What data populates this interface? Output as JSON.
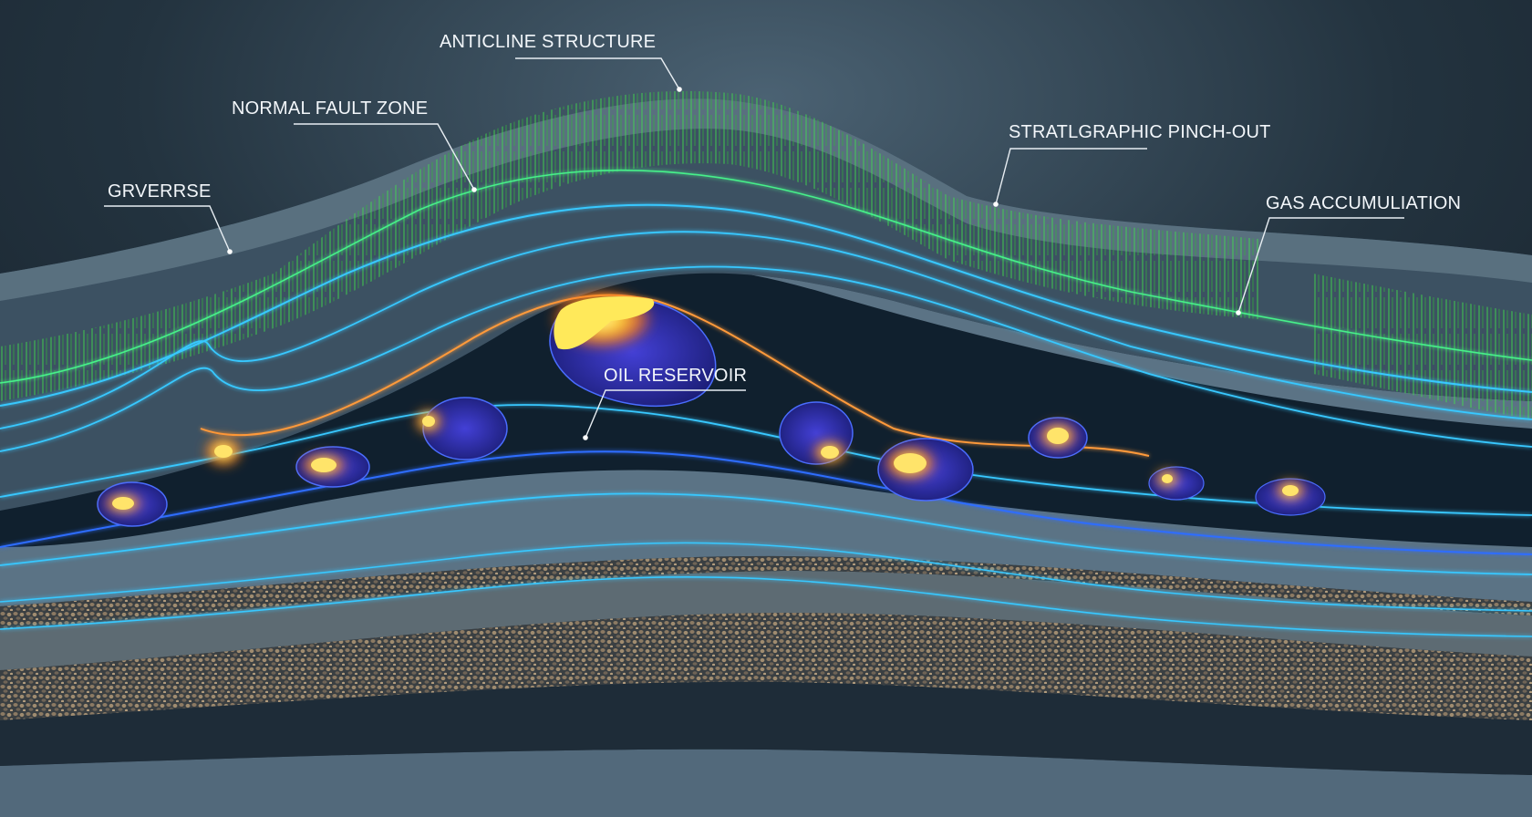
{
  "labels": {
    "anticline": "ANTICLINE STRUCTURE",
    "normal_fault": "NORMAL FAULT ZONE",
    "grverrse": "GRVERRSE",
    "pinch_out": "STRATLGRAPHIC PINCH-OUT",
    "gas": "GAS ACCUMULIATION",
    "oil": "OIL RESERVOIR"
  },
  "colors": {
    "background_top": "#22323f",
    "background_glow": "#3f5667",
    "rock_dark": "#1c2a37",
    "rock_mid": "#3e5263",
    "rock_light": "#6f8494",
    "seismic_blue": "#37c8ff",
    "deep_blue": "#2f6dff",
    "vegetation_green": "#3fe04a",
    "hydrocarbon_core": "#fff27a",
    "hydrocarbon_glow": "#ff8a1e",
    "trap_blue": "#2f2fb8",
    "gravel": "#8c7a63"
  },
  "icons": {
    "leader_dot": "dot-icon"
  }
}
